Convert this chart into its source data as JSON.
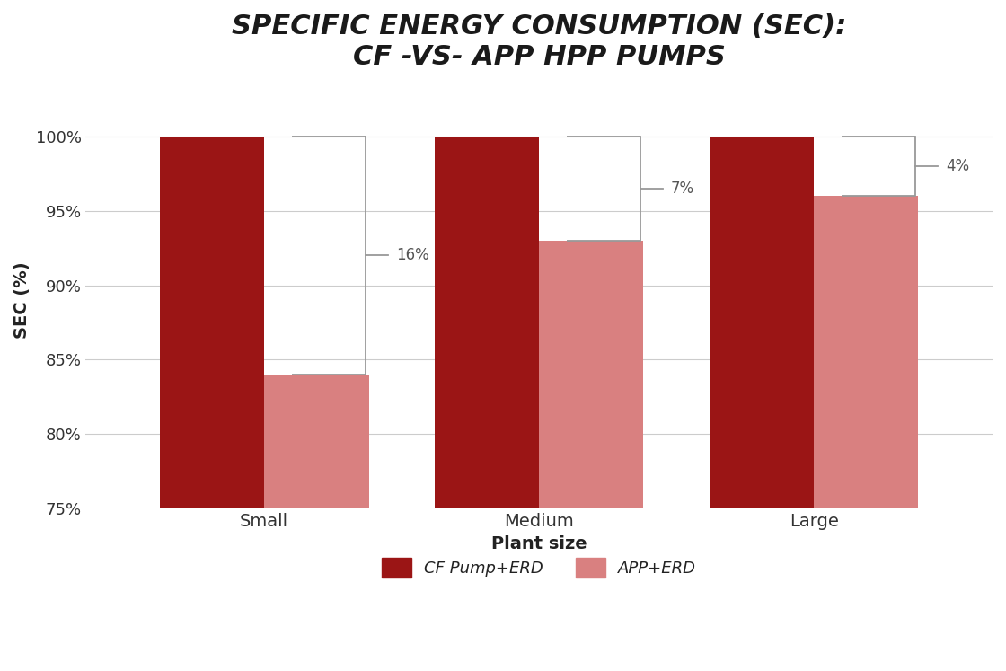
{
  "title_line1": "SPECIFIC ENERGY CONSUMPTION (SEC):",
  "title_line2": "CF -VS- APP HPP PUMPS",
  "categories": [
    "Small",
    "Medium",
    "Large"
  ],
  "cf_values": [
    100,
    100,
    100
  ],
  "app_values": [
    84,
    93,
    96
  ],
  "differences": [
    "16%",
    "7%",
    "4%"
  ],
  "cf_color": "#9B1515",
  "app_color": "#D98080",
  "ylabel": "SEC (%)",
  "xlabel": "Plant size",
  "ylim_min": 75,
  "ylim_max": 103,
  "yticks": [
    75,
    80,
    85,
    90,
    95,
    100
  ],
  "ytick_labels": [
    "75%",
    "80%",
    "85%",
    "90%",
    "95%",
    "100%"
  ],
  "legend_cf": "CF Pump+ERD",
  "legend_app": "APP+ERD",
  "background_color": "#FFFFFF",
  "bar_width": 0.38,
  "title_fontsize": 22,
  "axis_label_fontsize": 14,
  "tick_fontsize": 13,
  "legend_fontsize": 13,
  "tick_color": "#333333",
  "label_color": "#222222",
  "bracket_color": "#999999",
  "annot_color": "#555555"
}
